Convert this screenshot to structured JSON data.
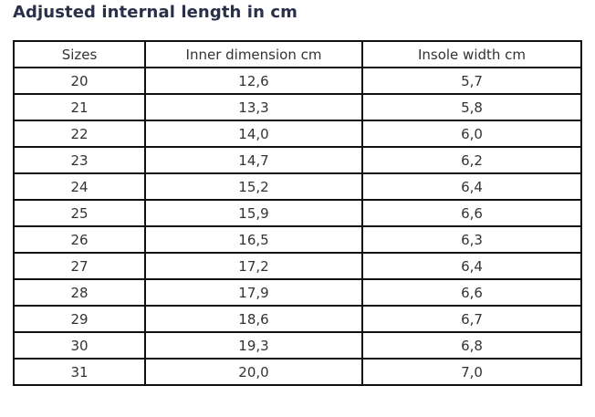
{
  "title": "Adjusted internal length in cm",
  "table": {
    "headers": [
      "Sizes",
      "Inner dimension cm",
      "Insole width cm"
    ],
    "rows": [
      [
        "20",
        "12,6",
        "5,7"
      ],
      [
        "21",
        "13,3",
        "5,8"
      ],
      [
        "22",
        "14,0",
        "6,0"
      ],
      [
        "23",
        "14,7",
        "6,2"
      ],
      [
        "24",
        "15,2",
        "6,4"
      ],
      [
        "25",
        "15,9",
        "6,6"
      ],
      [
        "26",
        "16,5",
        "6,3"
      ],
      [
        "27",
        "17,2",
        "6,4"
      ],
      [
        "28",
        "17,9",
        "6,6"
      ],
      [
        "29",
        "18,6",
        "6,7"
      ],
      [
        "30",
        "19,3",
        "6,8"
      ],
      [
        "31",
        "20,0",
        "7,0"
      ]
    ]
  }
}
